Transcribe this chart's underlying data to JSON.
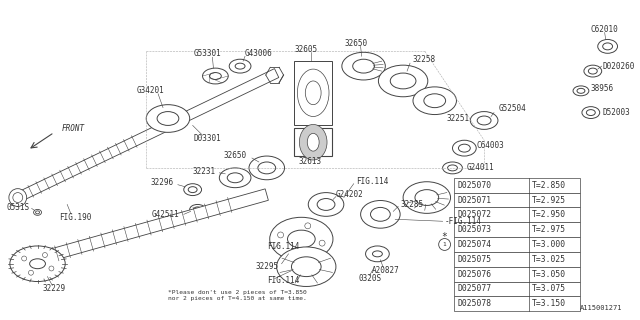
{
  "bg_color": "#ffffff",
  "line_color": "#444444",
  "text_color": "#333333",
  "diagram_number": "A115001271",
  "note_text": "*Please don't use 2 pieces of T=3.850\nnor 2 pieces of T=4.150 at same time.",
  "table_rows": [
    [
      "D025070",
      "T=2.850"
    ],
    [
      "D025071",
      "T=2.925"
    ],
    [
      "D025072",
      "T=2.950"
    ],
    [
      "D025073",
      "T=2.975"
    ],
    [
      "D025074",
      "T=3.000"
    ],
    [
      "D025075",
      "T=3.025"
    ],
    [
      "D025076",
      "T=3.050"
    ],
    [
      "D025077",
      "T=3.075"
    ],
    [
      "D025078",
      "T=3.150"
    ]
  ],
  "circled_row_idx": 4,
  "font_size": 6.0,
  "table_font_size": 5.8
}
